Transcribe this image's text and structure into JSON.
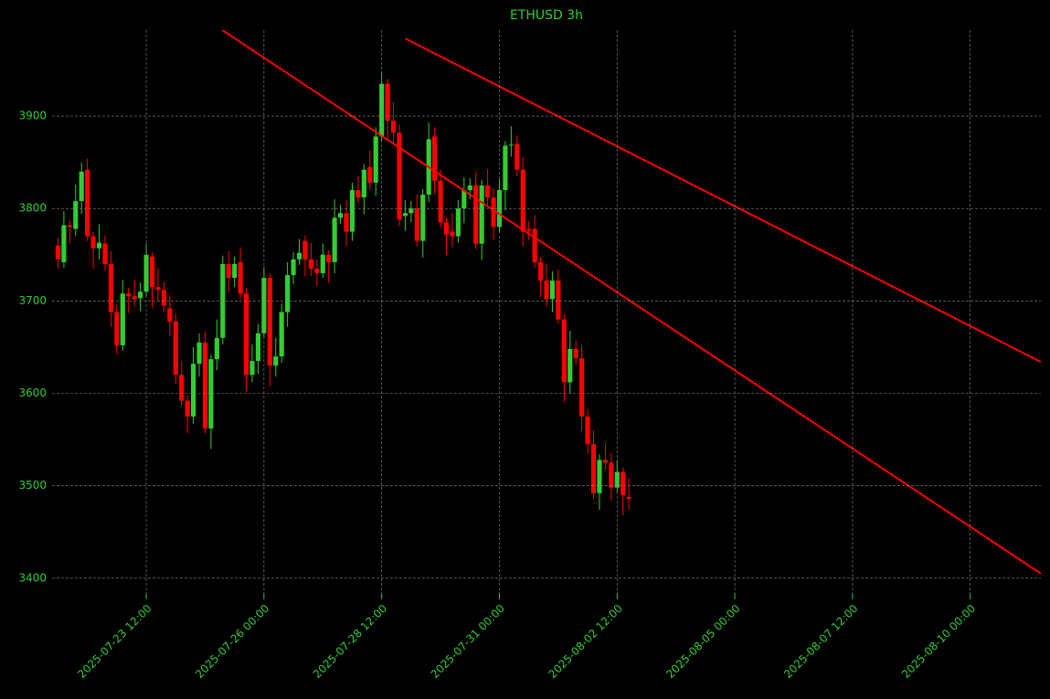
{
  "chart_data": {
    "type": "candlestick",
    "title": "ETHUSD 3h",
    "up_color": "#32cd32",
    "down_color": "#ff0000",
    "text_color": "#32cd32",
    "grid": true,
    "x": [
      "2025-07-21 15:00",
      "2025-07-21 18:00",
      "2025-07-21 21:00",
      "2025-07-22 00:00",
      "2025-07-22 03:00",
      "2025-07-22 06:00",
      "2025-07-22 09:00",
      "2025-07-22 12:00",
      "2025-07-22 15:00",
      "2025-07-22 18:00",
      "2025-07-22 21:00",
      "2025-07-23 00:00",
      "2025-07-23 03:00",
      "2025-07-23 06:00",
      "2025-07-23 09:00",
      "2025-07-23 12:00",
      "2025-07-23 15:00",
      "2025-07-23 18:00",
      "2025-07-23 21:00",
      "2025-07-24 00:00",
      "2025-07-24 03:00",
      "2025-07-24 06:00",
      "2025-07-24 09:00",
      "2025-07-24 12:00",
      "2025-07-24 15:00",
      "2025-07-24 18:00",
      "2025-07-24 21:00",
      "2025-07-25 00:00",
      "2025-07-25 03:00",
      "2025-07-25 06:00",
      "2025-07-25 09:00",
      "2025-07-25 12:00",
      "2025-07-25 15:00",
      "2025-07-25 18:00",
      "2025-07-25 21:00",
      "2025-07-26 00:00",
      "2025-07-26 03:00",
      "2025-07-26 06:00",
      "2025-07-26 09:00",
      "2025-07-26 12:00",
      "2025-07-26 15:00",
      "2025-07-26 18:00",
      "2025-07-26 21:00",
      "2025-07-27 00:00",
      "2025-07-27 03:00",
      "2025-07-27 06:00",
      "2025-07-27 09:00",
      "2025-07-27 12:00",
      "2025-07-27 15:00",
      "2025-07-27 18:00",
      "2025-07-27 21:00",
      "2025-07-28 00:00",
      "2025-07-28 03:00",
      "2025-07-28 06:00",
      "2025-07-28 09:00",
      "2025-07-28 12:00",
      "2025-07-28 15:00",
      "2025-07-28 18:00",
      "2025-07-28 21:00",
      "2025-07-29 00:00",
      "2025-07-29 03:00",
      "2025-07-29 06:00",
      "2025-07-29 09:00",
      "2025-07-29 12:00",
      "2025-07-29 15:00",
      "2025-07-29 18:00",
      "2025-07-29 21:00",
      "2025-07-30 00:00",
      "2025-07-30 03:00",
      "2025-07-30 06:00",
      "2025-07-30 09:00",
      "2025-07-30 12:00",
      "2025-07-30 15:00",
      "2025-07-30 18:00",
      "2025-07-30 21:00",
      "2025-07-31 00:00",
      "2025-07-31 03:00",
      "2025-07-31 06:00",
      "2025-07-31 09:00",
      "2025-07-31 12:00",
      "2025-07-31 15:00",
      "2025-07-31 18:00",
      "2025-07-31 21:00",
      "2025-08-01 00:00",
      "2025-08-01 03:00",
      "2025-08-01 06:00",
      "2025-08-01 09:00",
      "2025-08-01 12:00",
      "2025-08-01 15:00",
      "2025-08-01 18:00",
      "2025-08-01 21:00",
      "2025-08-02 00:00",
      "2025-08-02 03:00",
      "2025-08-02 06:00",
      "2025-08-02 09:00",
      "2025-08-02 12:00",
      "2025-08-02 15:00",
      "2025-08-02 18:00"
    ],
    "open": [
      3760,
      3742,
      3782,
      3778,
      3808,
      3842,
      3770,
      3757,
      3762,
      3740,
      3688,
      3652,
      3708,
      3705,
      3703,
      3710,
      3748,
      3715,
      3712,
      3692,
      3678,
      3620,
      3592,
      3575,
      3632,
      3655,
      3562,
      3637,
      3660,
      3740,
      3725,
      3742,
      3708,
      3620,
      3635,
      3665,
      3725,
      3630,
      3640,
      3688,
      3728,
      3745,
      3765,
      3745,
      3735,
      3730,
      3750,
      3742,
      3790,
      3795,
      3775,
      3820,
      3812,
      3845,
      3828,
      3878,
      3935,
      3895,
      3882,
      3792,
      3795,
      3800,
      3765,
      3815,
      3878,
      3830,
      3785,
      3775,
      3770,
      3800,
      3820,
      3825,
      3762,
      3825,
      3812,
      3780,
      3820,
      3868,
      3870,
      3842,
      3778,
      3778,
      3742,
      3722,
      3702,
      3722,
      3680,
      3612,
      3648,
      3638,
      3575,
      3545,
      3492,
      3528,
      3525,
      3498,
      3515,
      3488
    ],
    "high": [
      3768,
      3797,
      3788,
      3826,
      3850,
      3854,
      3775,
      3783,
      3771,
      3754,
      3696,
      3723,
      3714,
      3723,
      3720,
      3762,
      3753,
      3735,
      3721,
      3706,
      3686,
      3635,
      3598,
      3650,
      3665,
      3667,
      3642,
      3680,
      3749,
      3754,
      3748,
      3757,
      3714,
      3653,
      3675,
      3737,
      3730,
      3660,
      3697,
      3742,
      3753,
      3767,
      3771,
      3763,
      3745,
      3762,
      3755,
      3810,
      3804,
      3809,
      3828,
      3835,
      3848,
      3863,
      3888,
      3947,
      3940,
      3915,
      3891,
      3809,
      3808,
      3815,
      3821,
      3893,
      3888,
      3842,
      3790,
      3795,
      3809,
      3834,
      3833,
      3840,
      3831,
      3843,
      3822,
      3832,
      3873,
      3889,
      3879,
      3856,
      3786,
      3793,
      3748,
      3740,
      3732,
      3734,
      3685,
      3668,
      3657,
      3652,
      3583,
      3560,
      3534,
      3546,
      3535,
      3527,
      3520,
      3508
    ],
    "low": [
      3735,
      3736,
      3762,
      3770,
      3794,
      3765,
      3735,
      3745,
      3733,
      3672,
      3642,
      3646,
      3687,
      3694,
      3689,
      3705,
      3693,
      3700,
      3688,
      3662,
      3610,
      3586,
      3557,
      3567,
      3618,
      3557,
      3540,
      3625,
      3653,
      3709,
      3715,
      3702,
      3602,
      3612,
      3621,
      3660,
      3608,
      3618,
      3633,
      3672,
      3718,
      3739,
      3727,
      3727,
      3716,
      3725,
      3720,
      3730,
      3783,
      3759,
      3765,
      3806,
      3794,
      3820,
      3814,
      3873,
      3873,
      3870,
      3781,
      3776,
      3785,
      3759,
      3747,
      3807,
      3816,
      3780,
      3750,
      3758,
      3763,
      3784,
      3810,
      3756,
      3744,
      3804,
      3766,
      3775,
      3798,
      3856,
      3835,
      3759,
      3766,
      3736,
      3704,
      3694,
      3688,
      3675,
      3590,
      3600,
      3631,
      3559,
      3535,
      3486,
      3474,
      3517,
      3484,
      3493,
      3468,
      3474
    ],
    "close": [
      3745,
      3782,
      3780,
      3808,
      3840,
      3770,
      3757,
      3763,
      3740,
      3688,
      3652,
      3708,
      3705,
      3702,
      3710,
      3750,
      3715,
      3712,
      3695,
      3678,
      3620,
      3592,
      3575,
      3632,
      3655,
      3562,
      3637,
      3660,
      3740,
      3725,
      3740,
      3708,
      3620,
      3635,
      3665,
      3725,
      3630,
      3640,
      3688,
      3728,
      3745,
      3752,
      3745,
      3735,
      3730,
      3750,
      3742,
      3790,
      3795,
      3775,
      3820,
      3812,
      3842,
      3828,
      3878,
      3935,
      3895,
      3882,
      3788,
      3795,
      3800,
      3765,
      3815,
      3875,
      3830,
      3785,
      3772,
      3770,
      3800,
      3820,
      3825,
      3762,
      3825,
      3812,
      3780,
      3820,
      3868,
      3869,
      3842,
      3775,
      3776,
      3742,
      3722,
      3702,
      3722,
      3680,
      3612,
      3648,
      3638,
      3575,
      3545,
      3492,
      3528,
      3525,
      3498,
      3515,
      3490,
      3486
    ],
    "lines": [
      {
        "x": [
          "2025-07-25 00:00",
          "2025-08-11 12:00"
        ],
        "y": [
          3997,
          3405
        ],
        "color": "#ff0000"
      },
      {
        "x": [
          "2025-07-29 00:00",
          "2025-08-11 12:00"
        ],
        "y": [
          3984,
          3634
        ],
        "color": "#ff0000"
      }
    ],
    "xlim": [
      "2025-07-21 12:00",
      "2025-08-11 12:00"
    ],
    "xticks": [
      "2025-07-23 12:00",
      "2025-07-26 00:00",
      "2025-07-28 12:00",
      "2025-07-31 00:00",
      "2025-08-02 12:00",
      "2025-08-05 00:00",
      "2025-08-07 12:00",
      "2025-08-10 00:00"
    ],
    "ylim": [
      3383,
      3993
    ],
    "yticks": [
      3400,
      3500,
      3600,
      3700,
      3800,
      3900
    ]
  }
}
